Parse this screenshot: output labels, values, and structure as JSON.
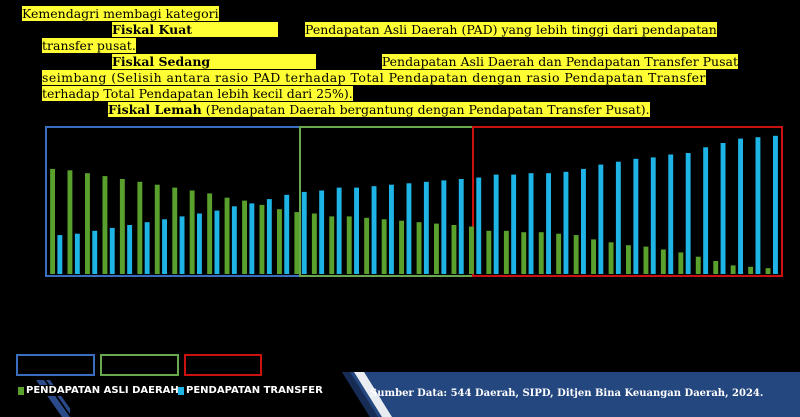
{
  "text": {
    "intro": "Kemendagri membagi kategori",
    "kuat_label": "Fiskal Kuat",
    "kuat_desc": "Pendapatan Asli Daerah (PAD) yang lebih tinggi dari pendapatan",
    "kuat_desc_cont": "transfer pusat.",
    "sedang_label": "Fiskal Sedang",
    "sedang_desc": "Pendapatan Asli Daerah dan Pendapatan Transfer Pusat",
    "sedang_desc_cont1": "seimbang (Selisih antara rasio PAD terhadap Total Pendapatan dengan rasio Pendapatan Transfer",
    "sedang_desc_cont2": "terhadap Total Pendapatan lebih kecil dari 25%).",
    "lemah_label": "Fiskal Lemah",
    "lemah_desc": "(Pendapatan Daerah bergantung dengan Pendapatan Transfer Pusat)."
  },
  "colors": {
    "highlight": "#ffff33",
    "pad": "#5aa02c",
    "transfer": "#1eb4e6",
    "kuat": "#3a6fbf",
    "sedang": "#6aa84f",
    "lemah": "#cc1111"
  },
  "chart_data": {
    "type": "bar",
    "groups": [
      "Fiskal Kuat",
      "Fiskal Sedang",
      "Fiskal Lemah"
    ],
    "series": [
      {
        "name": "PENDAPATAN ASLI DAERAH",
        "values": [
          0.73,
          0.72,
          0.7,
          0.68,
          0.66,
          0.64,
          0.62,
          0.6,
          0.58,
          0.56,
          0.53,
          0.51,
          0.48,
          0.45,
          0.43,
          0.42,
          0.4,
          0.4,
          0.39,
          0.38,
          0.37,
          0.36,
          0.35,
          0.34,
          0.33,
          0.3,
          0.3,
          0.29,
          0.29,
          0.28,
          0.27,
          0.24,
          0.22,
          0.2,
          0.19,
          0.17,
          0.15,
          0.12,
          0.09,
          0.06,
          0.05,
          0.04
        ]
      },
      {
        "name": "PENDAPATAN TRANSFER",
        "values": [
          0.27,
          0.28,
          0.3,
          0.32,
          0.34,
          0.36,
          0.38,
          0.4,
          0.42,
          0.44,
          0.47,
          0.49,
          0.52,
          0.55,
          0.57,
          0.58,
          0.6,
          0.6,
          0.61,
          0.62,
          0.63,
          0.64,
          0.65,
          0.66,
          0.67,
          0.69,
          0.69,
          0.7,
          0.7,
          0.71,
          0.73,
          0.76,
          0.78,
          0.8,
          0.81,
          0.83,
          0.84,
          0.88,
          0.91,
          0.94,
          0.95,
          0.96
        ]
      }
    ],
    "group_sizes": [
      13,
      12,
      17
    ],
    "legend": [
      "PENDAPATAN ASLI DAERAH",
      "PENDAPATAN TRANSFER"
    ]
  },
  "source": "Sumber Data: 544 Daerah, SIPD, Ditjen Bina Keuangan Daerah, 2024."
}
